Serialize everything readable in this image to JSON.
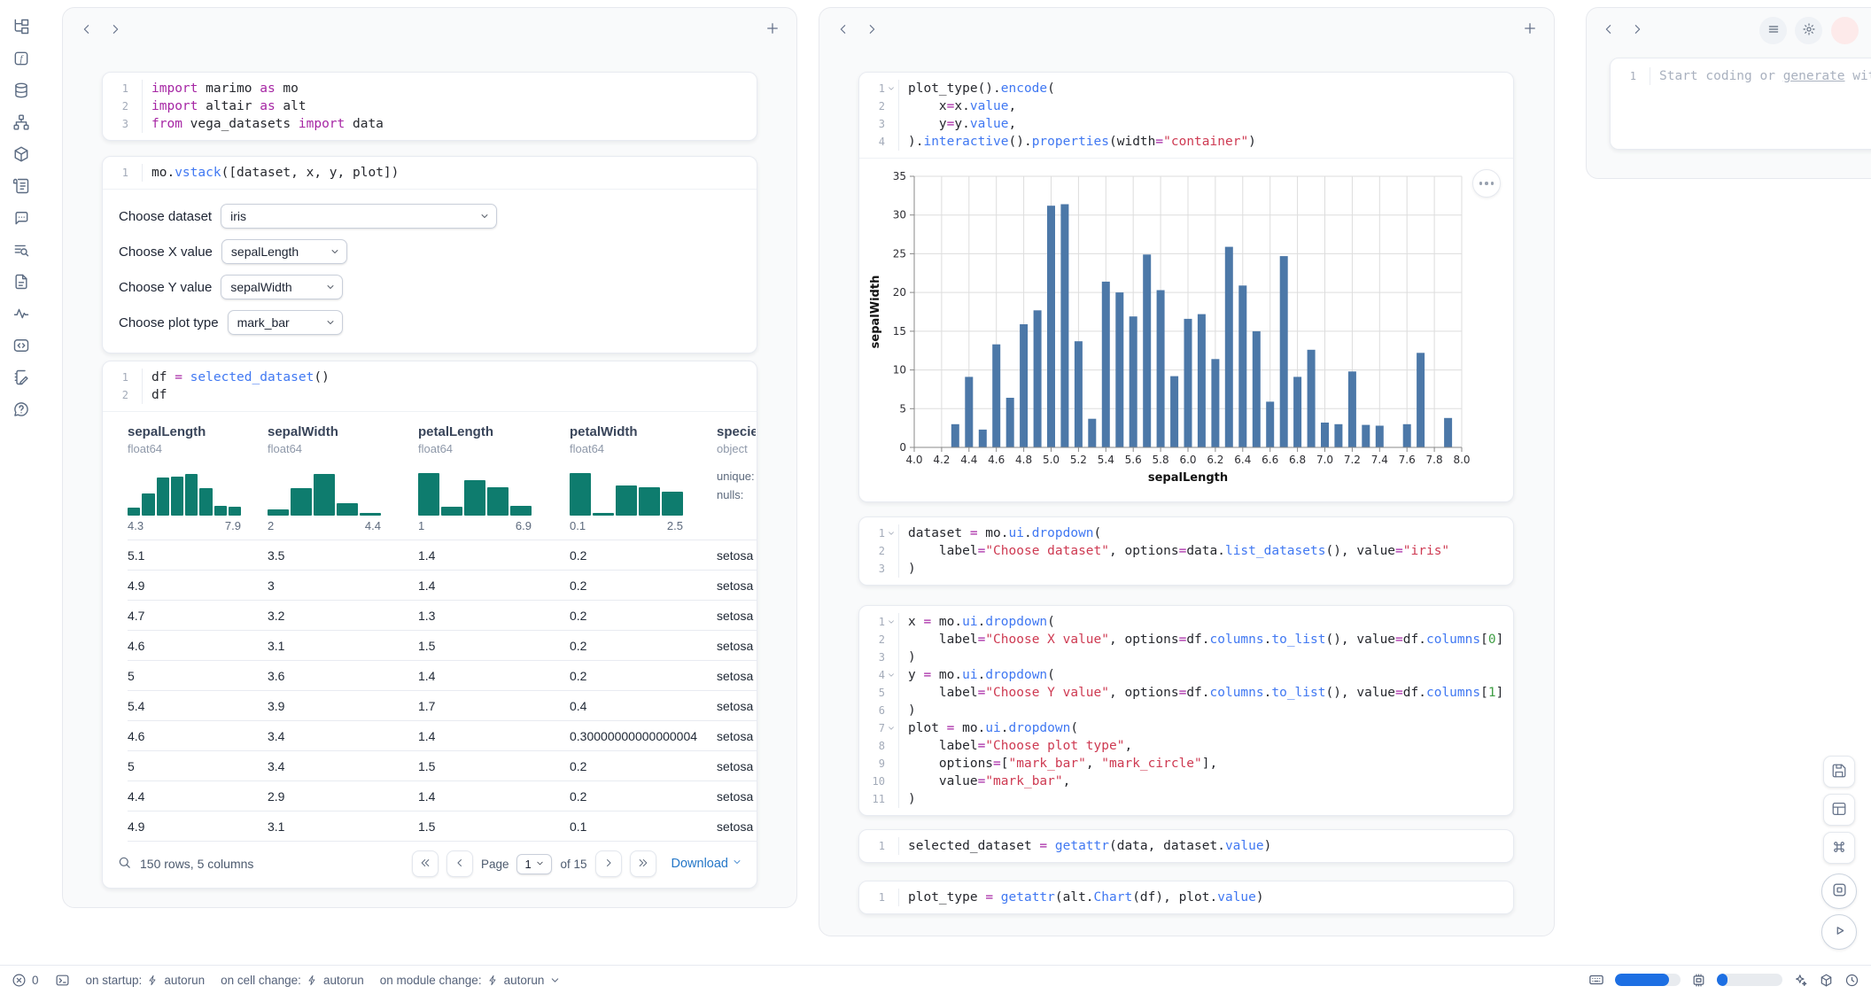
{
  "colors": {
    "keyword": "#a626a4",
    "function": "#4078f2",
    "string": "#ce3a52",
    "number": "#3f9e44",
    "hist_teal": "#0e7c6e",
    "bar_blue": "#4c78a8",
    "link_blue": "#2577c8",
    "meter_blue": "#1d6fe3",
    "close_red": "#d64545"
  },
  "sidebar": {
    "icons": [
      "file-tree-icon",
      "functions-icon",
      "database-icon",
      "dependency-graph-icon",
      "packages-icon",
      "logs-icon",
      "chat-bot-icon",
      "tracing-icon",
      "documentation-icon",
      "activity-icon",
      "snippets-icon",
      "scratchpad-icon",
      "help-icon"
    ]
  },
  "code": {
    "imports": {
      "lines": [
        {
          "n": "1",
          "tokens": [
            [
              "kw",
              "import"
            ],
            [
              "t",
              " marimo "
            ],
            [
              "kw",
              "as"
            ],
            [
              "t",
              " mo"
            ]
          ]
        },
        {
          "n": "2",
          "tokens": [
            [
              "kw",
              "import"
            ],
            [
              "t",
              " altair "
            ],
            [
              "kw",
              "as"
            ],
            [
              "t",
              " alt"
            ]
          ]
        },
        {
          "n": "3",
          "tokens": [
            [
              "kw",
              "from"
            ],
            [
              "t",
              " vega_datasets "
            ],
            [
              "kw",
              "import"
            ],
            [
              "t",
              " data"
            ]
          ]
        }
      ]
    },
    "vstack": {
      "lines": [
        {
          "n": "1",
          "tokens": [
            [
              "t",
              "mo."
            ],
            [
              "fn",
              "vstack"
            ],
            [
              "t",
              "([dataset, x, y, plot])"
            ]
          ]
        }
      ]
    },
    "df": {
      "lines": [
        {
          "n": "1",
          "tokens": [
            [
              "t",
              "df "
            ],
            [
              "kw",
              "="
            ],
            [
              "t",
              " "
            ],
            [
              "fn",
              "selected_dataset"
            ],
            [
              "t",
              "()"
            ]
          ]
        },
        {
          "n": "2",
          "tokens": [
            [
              "t",
              "df"
            ]
          ]
        }
      ]
    },
    "plot": {
      "lines": [
        {
          "n": "1",
          "fold": true,
          "tokens": [
            [
              "t",
              "plot_type()."
            ],
            [
              "fn",
              "encode"
            ],
            [
              "t",
              "("
            ]
          ]
        },
        {
          "n": "2",
          "tokens": [
            [
              "t",
              "    x"
            ],
            [
              "kw",
              "="
            ],
            [
              "t",
              "x."
            ],
            [
              "fn",
              "value"
            ],
            [
              "t",
              ","
            ]
          ]
        },
        {
          "n": "3",
          "tokens": [
            [
              "t",
              "    y"
            ],
            [
              "kw",
              "="
            ],
            [
              "t",
              "y."
            ],
            [
              "fn",
              "value"
            ],
            [
              "t",
              ","
            ]
          ]
        },
        {
          "n": "4",
          "tokens": [
            [
              "t",
              ")."
            ],
            [
              "fn",
              "interactive"
            ],
            [
              "t",
              "()."
            ],
            [
              "fn",
              "properties"
            ],
            [
              "t",
              "(width"
            ],
            [
              "kw",
              "="
            ],
            [
              "str",
              "\"container\""
            ],
            [
              "t",
              ")"
            ]
          ]
        }
      ]
    },
    "dataset_dd": {
      "lines": [
        {
          "n": "1",
          "fold": true,
          "tokens": [
            [
              "t",
              "dataset "
            ],
            [
              "kw",
              "="
            ],
            [
              "t",
              " mo."
            ],
            [
              "fn",
              "ui"
            ],
            [
              "t",
              "."
            ],
            [
              "fn",
              "dropdown"
            ],
            [
              "t",
              "("
            ]
          ]
        },
        {
          "n": "2",
          "tokens": [
            [
              "t",
              "    label"
            ],
            [
              "kw",
              "="
            ],
            [
              "str",
              "\"Choose dataset\""
            ],
            [
              "t",
              ", options"
            ],
            [
              "kw",
              "="
            ],
            [
              "t",
              "data."
            ],
            [
              "fn",
              "list_datasets"
            ],
            [
              "t",
              "(), value"
            ],
            [
              "kw",
              "="
            ],
            [
              "str",
              "\"iris\""
            ]
          ]
        },
        {
          "n": "3",
          "tokens": [
            [
              "t",
              ")"
            ]
          ]
        }
      ]
    },
    "xyplot_dd": {
      "lines": [
        {
          "n": "1",
          "fold": true,
          "tokens": [
            [
              "t",
              "x "
            ],
            [
              "kw",
              "="
            ],
            [
              "t",
              " mo."
            ],
            [
              "fn",
              "ui"
            ],
            [
              "t",
              "."
            ],
            [
              "fn",
              "dropdown"
            ],
            [
              "t",
              "("
            ]
          ]
        },
        {
          "n": "2",
          "tokens": [
            [
              "t",
              "    label"
            ],
            [
              "kw",
              "="
            ],
            [
              "str",
              "\"Choose X value\""
            ],
            [
              "t",
              ", options"
            ],
            [
              "kw",
              "="
            ],
            [
              "t",
              "df."
            ],
            [
              "fn",
              "columns"
            ],
            [
              "t",
              "."
            ],
            [
              "fn",
              "to_list"
            ],
            [
              "t",
              "(), value"
            ],
            [
              "kw",
              "="
            ],
            [
              "t",
              "df."
            ],
            [
              "fn",
              "columns"
            ],
            [
              "t",
              "["
            ],
            [
              "num",
              "0"
            ],
            [
              "t",
              "]"
            ]
          ]
        },
        {
          "n": "3",
          "tokens": [
            [
              "t",
              ")"
            ]
          ]
        },
        {
          "n": "4",
          "fold": true,
          "tokens": [
            [
              "t",
              "y "
            ],
            [
              "kw",
              "="
            ],
            [
              "t",
              " mo."
            ],
            [
              "fn",
              "ui"
            ],
            [
              "t",
              "."
            ],
            [
              "fn",
              "dropdown"
            ],
            [
              "t",
              "("
            ]
          ]
        },
        {
          "n": "5",
          "tokens": [
            [
              "t",
              "    label"
            ],
            [
              "kw",
              "="
            ],
            [
              "str",
              "\"Choose Y value\""
            ],
            [
              "t",
              ", options"
            ],
            [
              "kw",
              "="
            ],
            [
              "t",
              "df."
            ],
            [
              "fn",
              "columns"
            ],
            [
              "t",
              "."
            ],
            [
              "fn",
              "to_list"
            ],
            [
              "t",
              "(), value"
            ],
            [
              "kw",
              "="
            ],
            [
              "t",
              "df."
            ],
            [
              "fn",
              "columns"
            ],
            [
              "t",
              "["
            ],
            [
              "num",
              "1"
            ],
            [
              "t",
              "]"
            ]
          ]
        },
        {
          "n": "6",
          "tokens": [
            [
              "t",
              ")"
            ]
          ]
        },
        {
          "n": "7",
          "fold": true,
          "tokens": [
            [
              "t",
              "plot "
            ],
            [
              "kw",
              "="
            ],
            [
              "t",
              " mo."
            ],
            [
              "fn",
              "ui"
            ],
            [
              "t",
              "."
            ],
            [
              "fn",
              "dropdown"
            ],
            [
              "t",
              "("
            ]
          ]
        },
        {
          "n": "8",
          "tokens": [
            [
              "t",
              "    label"
            ],
            [
              "kw",
              "="
            ],
            [
              "str",
              "\"Choose plot type\""
            ],
            [
              "t",
              ","
            ]
          ]
        },
        {
          "n": "9",
          "tokens": [
            [
              "t",
              "    options"
            ],
            [
              "kw",
              "="
            ],
            [
              "t",
              "["
            ],
            [
              "str",
              "\"mark_bar\""
            ],
            [
              "t",
              ", "
            ],
            [
              "str",
              "\"mark_circle\""
            ],
            [
              "t",
              "],"
            ]
          ]
        },
        {
          "n": "10",
          "tokens": [
            [
              "t",
              "    value"
            ],
            [
              "kw",
              "="
            ],
            [
              "str",
              "\"mark_bar\""
            ],
            [
              "t",
              ","
            ]
          ]
        },
        {
          "n": "11",
          "tokens": [
            [
              "t",
              ")"
            ]
          ]
        }
      ]
    },
    "selected": {
      "lines": [
        {
          "n": "1",
          "tokens": [
            [
              "t",
              "selected_dataset "
            ],
            [
              "kw",
              "="
            ],
            [
              "t",
              " "
            ],
            [
              "fn",
              "getattr"
            ],
            [
              "t",
              "(data, dataset."
            ],
            [
              "fn",
              "value"
            ],
            [
              "t",
              ")"
            ]
          ]
        }
      ]
    },
    "plot_type": {
      "lines": [
        {
          "n": "1",
          "tokens": [
            [
              "t",
              "plot_type "
            ],
            [
              "kw",
              "="
            ],
            [
              "t",
              " "
            ],
            [
              "fn",
              "getattr"
            ],
            [
              "t",
              "(alt."
            ],
            [
              "fn",
              "Chart"
            ],
            [
              "t",
              "(df), plot."
            ],
            [
              "fn",
              "value"
            ],
            [
              "t",
              ")"
            ]
          ]
        }
      ]
    }
  },
  "controls": {
    "rows": [
      {
        "name": "dataset-dropdown",
        "label": "Choose dataset",
        "value": "iris"
      },
      {
        "name": "x-value-dropdown",
        "label": "Choose X value",
        "value": "sepalLength"
      },
      {
        "name": "y-value-dropdown",
        "label": "Choose Y value",
        "value": "sepalWidth"
      },
      {
        "name": "plot-type-dropdown",
        "label": "Choose plot type",
        "value": "mark_bar"
      }
    ]
  },
  "table": {
    "columns": [
      {
        "name": "sepalLength",
        "dtype": "float64",
        "hist": [
          0.16,
          0.45,
          0.76,
          0.79,
          0.84,
          0.55,
          0.2,
          0.17
        ],
        "min": "4.3",
        "max": "7.9"
      },
      {
        "name": "sepalWidth",
        "dtype": "float64",
        "hist": [
          0.12,
          0.55,
          0.84,
          0.25,
          0.06
        ],
        "min": "2",
        "max": "4.4"
      },
      {
        "name": "petalLength",
        "dtype": "float64",
        "hist": [
          0.85,
          0.18,
          0.71,
          0.58,
          0.2
        ],
        "min": "1",
        "max": "6.9"
      },
      {
        "name": "petalWidth",
        "dtype": "float64",
        "hist": [
          0.85,
          0.05,
          0.6,
          0.58,
          0.49
        ],
        "min": "0.1",
        "max": "2.5"
      },
      {
        "name": "species",
        "dtype": "object",
        "stats": [
          "unique:",
          "nulls:"
        ]
      }
    ],
    "rows": [
      [
        "5.1",
        "3.5",
        "1.4",
        "0.2",
        "setosa"
      ],
      [
        "4.9",
        "3",
        "1.4",
        "0.2",
        "setosa"
      ],
      [
        "4.7",
        "3.2",
        "1.3",
        "0.2",
        "setosa"
      ],
      [
        "4.6",
        "3.1",
        "1.5",
        "0.2",
        "setosa"
      ],
      [
        "5",
        "3.6",
        "1.4",
        "0.2",
        "setosa"
      ],
      [
        "5.4",
        "3.9",
        "1.7",
        "0.4",
        "setosa"
      ],
      [
        "4.6",
        "3.4",
        "1.4",
        "0.30000000000000004",
        "setosa"
      ],
      [
        "5",
        "3.4",
        "1.5",
        "0.2",
        "setosa"
      ],
      [
        "4.4",
        "2.9",
        "1.4",
        "0.2",
        "setosa"
      ],
      [
        "4.9",
        "3.1",
        "1.5",
        "0.1",
        "setosa"
      ]
    ],
    "footer": {
      "summary": "150 rows, 5 columns",
      "page_label": "Page",
      "page_value": "1",
      "of_label": "of 15",
      "download_label": "Download"
    }
  },
  "chart_data": {
    "type": "bar",
    "x": [
      4.3,
      4.4,
      4.5,
      4.6,
      4.7,
      4.8,
      4.9,
      5.0,
      5.1,
      5.2,
      5.3,
      5.4,
      5.5,
      5.6,
      5.7,
      5.8,
      5.9,
      6.0,
      6.1,
      6.2,
      6.3,
      6.4,
      6.5,
      6.6,
      6.7,
      6.8,
      6.9,
      7.0,
      7.1,
      7.2,
      7.3,
      7.4,
      7.6,
      7.7,
      7.9
    ],
    "values": [
      3.0,
      9.1,
      2.3,
      13.3,
      6.4,
      15.9,
      17.7,
      31.2,
      31.4,
      13.7,
      3.7,
      21.4,
      20.0,
      16.9,
      24.9,
      20.3,
      9.2,
      16.6,
      17.2,
      11.4,
      25.9,
      20.9,
      15.0,
      5.9,
      24.7,
      9.1,
      12.6,
      3.2,
      3.0,
      9.8,
      2.9,
      2.8,
      3.0,
      12.2,
      3.8
    ],
    "xlabel": "sepalLength",
    "ylabel": "sepalWidth",
    "xlim": [
      4.0,
      8.0
    ],
    "ylim": [
      0,
      35
    ],
    "xtick_step": 0.2,
    "ytick_step": 5,
    "grid": true,
    "bar_color": "#4c78a8",
    "legend": "none"
  },
  "right_panel": {
    "line_number": "1",
    "placeholder_prefix": "Start coding or ",
    "placeholder_link": "generate",
    "placeholder_suffix": " with AI"
  },
  "status_bar": {
    "error_count": "0",
    "autorun_items": [
      {
        "label": "on startup:",
        "value": "autorun"
      },
      {
        "label": "on cell change:",
        "value": "autorun"
      },
      {
        "label": "on module change:",
        "value": "autorun"
      }
    ],
    "meters": [
      {
        "name": "memory-meter",
        "fill": 0.82
      },
      {
        "name": "cpu-meter",
        "fill": 0.16
      }
    ]
  }
}
